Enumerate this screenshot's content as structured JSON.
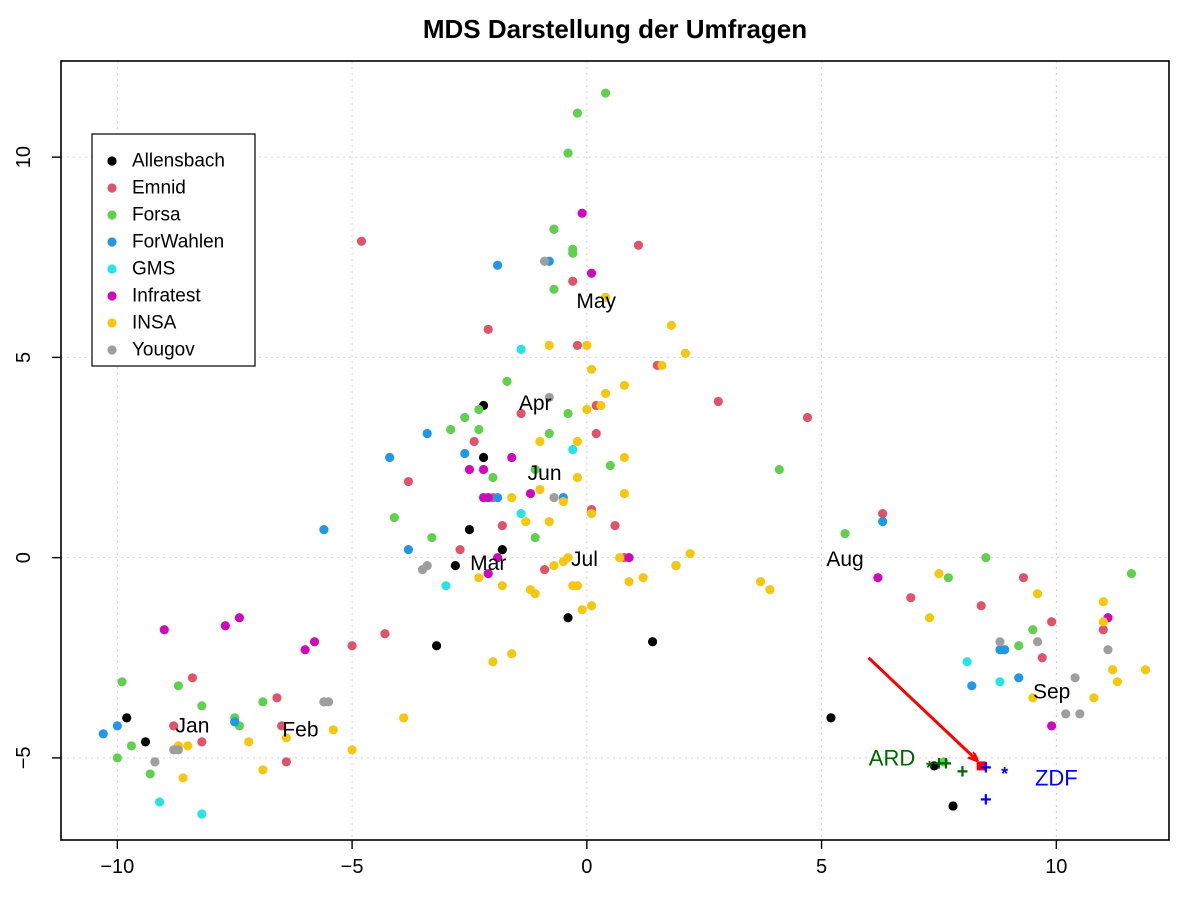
{
  "chart_data": {
    "type": "scatter",
    "title": "MDS Darstellung der Umfragen",
    "xlabel": "",
    "ylabel": "",
    "xlim": [
      -11.2,
      12.4
    ],
    "ylim": [
      -7.05,
      12.4
    ],
    "xticks": [
      -10,
      -5,
      0,
      5,
      10
    ],
    "yticks": [
      -5,
      0,
      5,
      10
    ],
    "xtick_labels": [
      "−10",
      "−5",
      "0",
      "5",
      "10"
    ],
    "ytick_labels": [
      "−5",
      "0",
      "5",
      "10"
    ],
    "grid": true,
    "legend_position": "top-left",
    "series": [
      {
        "name": "Allensbach",
        "color": "#000000",
        "points": [
          [
            -9.8,
            -4.0
          ],
          [
            -9.4,
            -4.6
          ],
          [
            -3.2,
            -2.2
          ],
          [
            -2.8,
            -0.2
          ],
          [
            -2.5,
            0.7
          ],
          [
            -2.2,
            2.5
          ],
          [
            -2.2,
            3.8
          ],
          [
            -1.8,
            0.2
          ],
          [
            -0.4,
            -1.5
          ],
          [
            1.4,
            -2.1
          ],
          [
            5.2,
            -4.0
          ],
          [
            7.4,
            -5.2
          ],
          [
            7.8,
            -6.2
          ]
        ]
      },
      {
        "name": "Emnid",
        "color": "#DF536B",
        "points": [
          [
            -8.8,
            -4.2
          ],
          [
            -8.4,
            -3.0
          ],
          [
            -8.2,
            -4.6
          ],
          [
            -6.6,
            -3.5
          ],
          [
            -6.5,
            -4.2
          ],
          [
            -6.4,
            -5.1
          ],
          [
            -4.8,
            7.9
          ],
          [
            -5.0,
            -2.2
          ],
          [
            -4.3,
            -1.9
          ],
          [
            -3.8,
            1.9
          ],
          [
            -2.7,
            0.2
          ],
          [
            -2.4,
            2.9
          ],
          [
            -2.1,
            5.7
          ],
          [
            -2.0,
            1.5
          ],
          [
            -1.8,
            0.8
          ],
          [
            -1.4,
            3.6
          ],
          [
            -0.9,
            -0.3
          ],
          [
            -0.7,
            8.2
          ],
          [
            -0.3,
            6.9
          ],
          [
            -0.2,
            5.3
          ],
          [
            0.1,
            1.2
          ],
          [
            0.2,
            3.8
          ],
          [
            0.2,
            3.1
          ],
          [
            0.6,
            0.8
          ],
          [
            0.8,
            0.0
          ],
          [
            1.1,
            7.8
          ],
          [
            1.5,
            4.8
          ],
          [
            2.8,
            3.9
          ],
          [
            4.7,
            3.5
          ],
          [
            6.3,
            1.1
          ],
          [
            6.9,
            -1.0
          ],
          [
            8.4,
            -1.2
          ],
          [
            9.3,
            -0.5
          ],
          [
            9.9,
            -1.6
          ],
          [
            9.7,
            -2.5
          ],
          [
            11.0,
            -1.8
          ],
          [
            11.1,
            -1.5
          ]
        ]
      },
      {
        "name": "Forsa",
        "color": "#61D04F",
        "points": [
          [
            -10.0,
            -5.0
          ],
          [
            -9.9,
            -3.1
          ],
          [
            -9.7,
            -4.7
          ],
          [
            -9.3,
            -5.4
          ],
          [
            -8.7,
            -3.2
          ],
          [
            -8.2,
            -3.7
          ],
          [
            -7.5,
            -4.0
          ],
          [
            -7.4,
            -4.2
          ],
          [
            -6.9,
            -3.6
          ],
          [
            -5.6,
            -3.6
          ],
          [
            -4.1,
            1.0
          ],
          [
            -3.3,
            0.5
          ],
          [
            -2.9,
            3.2
          ],
          [
            -2.6,
            3.5
          ],
          [
            -2.3,
            3.7
          ],
          [
            -2.3,
            3.2
          ],
          [
            -2.0,
            2.0
          ],
          [
            -1.7,
            4.4
          ],
          [
            -1.1,
            0.5
          ],
          [
            -1.1,
            2.2
          ],
          [
            -0.8,
            3.1
          ],
          [
            -0.7,
            6.7
          ],
          [
            -0.7,
            8.2
          ],
          [
            -0.4,
            10.1
          ],
          [
            -0.3,
            7.7
          ],
          [
            -0.3,
            7.6
          ],
          [
            -0.2,
            11.1
          ],
          [
            -0.4,
            3.6
          ],
          [
            0.4,
            11.6
          ],
          [
            0.5,
            2.3
          ],
          [
            4.1,
            2.2
          ],
          [
            5.5,
            0.6
          ],
          [
            7.6,
            -5.1
          ],
          [
            7.7,
            -0.5
          ],
          [
            8.5,
            0.0
          ],
          [
            9.2,
            -2.2
          ],
          [
            9.5,
            -1.8
          ],
          [
            11.6,
            -0.4
          ]
        ]
      },
      {
        "name": "ForWahlen",
        "color": "#2297E6",
        "points": [
          [
            -10.3,
            -4.4
          ],
          [
            -10.0,
            -4.2
          ],
          [
            -7.5,
            -4.1
          ],
          [
            -5.6,
            0.7
          ],
          [
            -4.2,
            2.5
          ],
          [
            -3.8,
            0.2
          ],
          [
            -3.4,
            3.1
          ],
          [
            -2.6,
            2.6
          ],
          [
            -1.9,
            7.3
          ],
          [
            -1.9,
            1.5
          ],
          [
            -0.8,
            7.4
          ],
          [
            -0.5,
            1.5
          ],
          [
            1.9,
            -0.2
          ],
          [
            6.3,
            0.9
          ],
          [
            8.2,
            -3.2
          ],
          [
            8.8,
            -2.3
          ],
          [
            8.9,
            -2.3
          ],
          [
            9.2,
            -3.0
          ]
        ]
      },
      {
        "name": "GMS",
        "color": "#28E2E5",
        "points": [
          [
            -9.1,
            -6.1
          ],
          [
            -8.2,
            -6.4
          ],
          [
            -3.0,
            -0.7
          ],
          [
            -1.4,
            5.2
          ],
          [
            -1.4,
            1.1
          ],
          [
            -0.3,
            2.7
          ],
          [
            8.1,
            -2.6
          ],
          [
            8.8,
            -3.1
          ]
        ]
      },
      {
        "name": "Infratest",
        "color": "#CD0BBC",
        "points": [
          [
            -9.0,
            -1.8
          ],
          [
            -7.7,
            -1.7
          ],
          [
            -7.4,
            -1.5
          ],
          [
            -6.0,
            -2.3
          ],
          [
            -5.8,
            -2.1
          ],
          [
            -2.5,
            2.2
          ],
          [
            -2.2,
            2.2
          ],
          [
            -2.2,
            1.5
          ],
          [
            -2.1,
            -0.4
          ],
          [
            -2.1,
            1.5
          ],
          [
            -1.6,
            2.5
          ],
          [
            -1.9,
            0.0
          ],
          [
            -1.2,
            1.6
          ],
          [
            -0.1,
            8.6
          ],
          [
            0.1,
            7.1
          ],
          [
            0.9,
            0.0
          ],
          [
            6.2,
            -0.5
          ],
          [
            9.9,
            -4.2
          ],
          [
            11.1,
            -1.5
          ]
        ]
      },
      {
        "name": "INSA",
        "color": "#F5C710",
        "points": [
          [
            -8.7,
            -4.7
          ],
          [
            -8.6,
            -5.5
          ],
          [
            -8.5,
            -4.7
          ],
          [
            -7.2,
            -4.6
          ],
          [
            -6.9,
            -5.3
          ],
          [
            -6.4,
            -4.5
          ],
          [
            -5.4,
            -4.3
          ],
          [
            -5.0,
            -4.8
          ],
          [
            -3.9,
            -4.0
          ],
          [
            -2.3,
            -0.5
          ],
          [
            -2.0,
            -2.6
          ],
          [
            -1.8,
            -0.7
          ],
          [
            -1.6,
            1.5
          ],
          [
            -1.6,
            -2.4
          ],
          [
            -1.3,
            0.9
          ],
          [
            -1.2,
            -0.8
          ],
          [
            -1.1,
            -0.9
          ],
          [
            -1.0,
            1.7
          ],
          [
            -1.0,
            2.9
          ],
          [
            -0.8,
            0.9
          ],
          [
            -0.8,
            5.3
          ],
          [
            -0.7,
            -0.2
          ],
          [
            -0.5,
            1.4
          ],
          [
            -0.5,
            -0.1
          ],
          [
            -0.4,
            0.0
          ],
          [
            -0.3,
            -0.7
          ],
          [
            -0.2,
            -0.7
          ],
          [
            -0.2,
            2.0
          ],
          [
            -0.2,
            2.9
          ],
          [
            -0.1,
            -1.3
          ],
          [
            0.0,
            5.3
          ],
          [
            0.0,
            3.7
          ],
          [
            0.1,
            1.1
          ],
          [
            0.1,
            -1.2
          ],
          [
            0.1,
            4.7
          ],
          [
            0.3,
            3.8
          ],
          [
            0.4,
            4.1
          ],
          [
            0.4,
            6.5
          ],
          [
            0.7,
            0.0
          ],
          [
            0.8,
            2.5
          ],
          [
            0.8,
            1.6
          ],
          [
            0.8,
            4.3
          ],
          [
            0.9,
            -0.6
          ],
          [
            1.2,
            -0.5
          ],
          [
            1.6,
            4.8
          ],
          [
            1.8,
            5.8
          ],
          [
            1.9,
            -0.2
          ],
          [
            2.1,
            5.1
          ],
          [
            2.2,
            0.1
          ],
          [
            3.7,
            -0.6
          ],
          [
            3.9,
            -0.8
          ],
          [
            7.3,
            -1.5
          ],
          [
            7.5,
            -0.4
          ],
          [
            9.5,
            -3.5
          ],
          [
            9.6,
            -0.9
          ],
          [
            10.8,
            -3.5
          ],
          [
            11.0,
            -1.6
          ],
          [
            11.0,
            -1.1
          ],
          [
            11.2,
            -2.8
          ],
          [
            11.3,
            -3.1
          ],
          [
            11.9,
            -2.8
          ]
        ]
      },
      {
        "name": "Yougov",
        "color": "#9E9E9E",
        "points": [
          [
            -9.2,
            -5.1
          ],
          [
            -8.8,
            -4.8
          ],
          [
            -8.7,
            -4.8
          ],
          [
            -5.6,
            -3.6
          ],
          [
            -5.5,
            -3.6
          ],
          [
            -3.5,
            -0.3
          ],
          [
            -3.4,
            -0.2
          ],
          [
            -0.9,
            7.4
          ],
          [
            -0.8,
            4.0
          ],
          [
            -0.7,
            1.5
          ],
          [
            8.8,
            -2.1
          ],
          [
            9.6,
            -2.1
          ],
          [
            10.2,
            -3.9
          ],
          [
            10.4,
            -3.0
          ],
          [
            10.5,
            -3.9
          ],
          [
            11.1,
            -2.3
          ]
        ]
      }
    ],
    "annotations": {
      "months": [
        {
          "text": "Jan",
          "x": -8.4,
          "y": -4.2
        },
        {
          "text": "Feb",
          "x": -6.1,
          "y": -4.3
        },
        {
          "text": "Mar",
          "x": -2.1,
          "y": -0.15
        },
        {
          "text": "Apr",
          "x": -1.1,
          "y": 3.85
        },
        {
          "text": "May",
          "x": 0.2,
          "y": 6.4
        },
        {
          "text": "Jun",
          "x": -0.9,
          "y": 2.1
        },
        {
          "text": "Jul",
          "x": -0.05,
          "y": -0.05
        },
        {
          "text": "Aug",
          "x": 5.5,
          "y": -0.05
        },
        {
          "text": "Sep",
          "x": 9.9,
          "y": -3.35
        }
      ],
      "ard": {
        "label": "ARD",
        "color": "#006400",
        "label_pos": [
          6.5,
          -5.0
        ],
        "markers": [
          {
            "symbol": "*",
            "x": 7.3,
            "y": -5.25
          },
          {
            "symbol": "+",
            "x": 7.5,
            "y": -5.15
          },
          {
            "symbol": "+",
            "x": 8.0,
            "y": -5.35
          },
          {
            "symbol": "+",
            "x": 7.65,
            "y": -5.15
          }
        ]
      },
      "zdf": {
        "label": "ZDF",
        "color": "#0000FF",
        "label_pos": [
          10.0,
          -5.5
        ],
        "markers": [
          {
            "symbol": "+",
            "x": 8.5,
            "y": -5.25
          },
          {
            "symbol": "*",
            "x": 8.9,
            "y": -5.4
          },
          {
            "symbol": "+",
            "x": 8.5,
            "y": -6.05
          }
        ]
      },
      "arrow": {
        "color": "#FF0000",
        "from": [
          6.0,
          -2.5
        ],
        "to": [
          8.3,
          -5.05
        ]
      },
      "target_point": {
        "color": "#FF0000",
        "x": 8.4,
        "y": -5.2
      }
    }
  }
}
